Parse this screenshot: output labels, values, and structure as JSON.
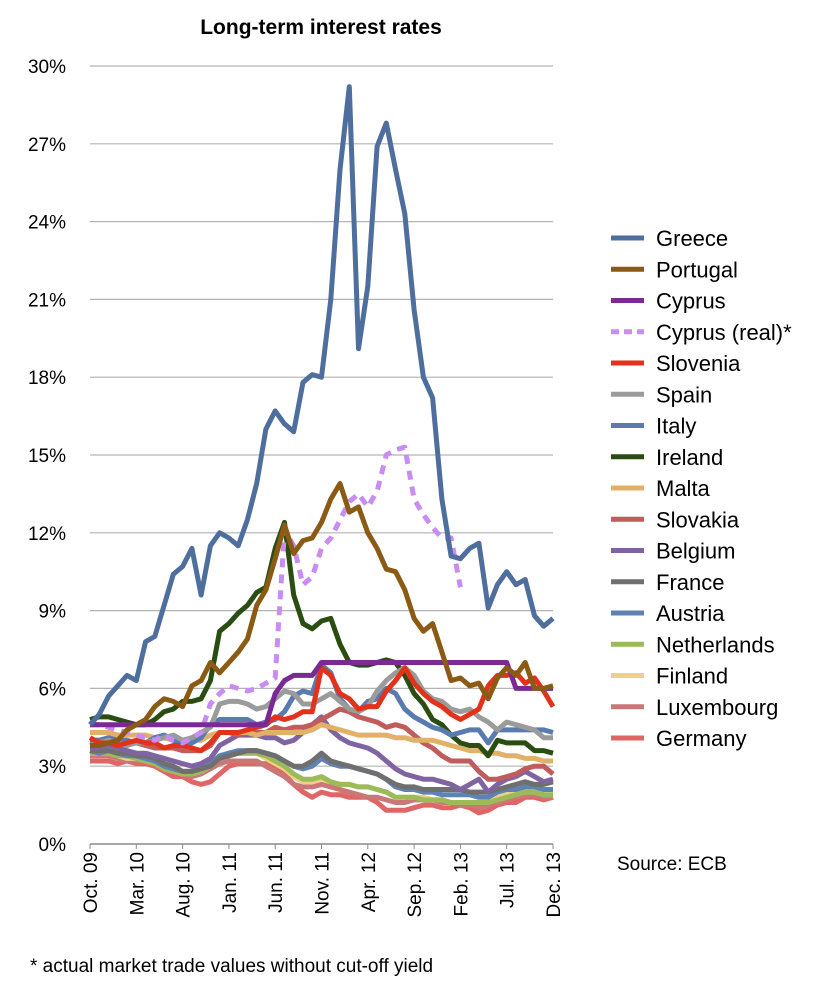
{
  "chart_data": {
    "type": "line",
    "title": "Long-term interest rates",
    "source": "Source: ECB",
    "footnote": "* actual market trade values without cut-off yield",
    "xlabel": "",
    "ylabel": "",
    "ylim": [
      0,
      30
    ],
    "yticks": [
      0,
      3,
      6,
      9,
      12,
      15,
      18,
      21,
      24,
      27,
      30
    ],
    "ytick_labels": [
      "0%",
      "3%",
      "6%",
      "9%",
      "12%",
      "15%",
      "18%",
      "21%",
      "24%",
      "27%",
      "30%"
    ],
    "x_tick_labels": [
      "Oct. 09",
      "Mar. 10",
      "Aug. 10",
      "Jan. 11",
      "Jun. 11",
      "Nov. 11",
      "Apr. 12",
      "Sep. 12",
      "Feb. 13",
      "Jul. 13",
      "Dec. 13"
    ],
    "x_tick_indices": [
      0,
      5,
      10,
      15,
      20,
      25,
      30,
      35,
      40,
      45,
      50
    ],
    "x_count": 51,
    "grid": true,
    "legend_position": "right",
    "series": [
      {
        "name": "Greece",
        "color": "#4e6e9e",
        "dashed": false,
        "values": [
          4.6,
          5.0,
          5.7,
          6.1,
          6.5,
          6.3,
          7.8,
          8.0,
          9.2,
          10.4,
          10.7,
          11.4,
          9.6,
          11.5,
          12.0,
          11.8,
          11.5,
          12.5,
          13.9,
          16.0,
          16.7,
          16.2,
          15.9,
          17.8,
          18.1,
          18.0,
          21.0,
          26.0,
          29.2,
          19.1,
          21.5,
          26.9,
          27.8,
          26.0,
          24.3,
          20.6,
          18.0,
          17.2,
          13.3,
          11.1,
          11.0,
          11.4,
          11.6,
          9.1,
          10.0,
          10.5,
          10.0,
          10.2,
          8.8,
          8.4,
          8.7
        ]
      },
      {
        "name": "Portugal",
        "color": "#8b5a14",
        "dashed": false,
        "values": [
          3.8,
          3.8,
          3.9,
          4.0,
          4.4,
          4.6,
          4.8,
          5.3,
          5.6,
          5.5,
          5.3,
          6.1,
          6.3,
          7.0,
          6.6,
          7.0,
          7.4,
          7.9,
          9.2,
          9.8,
          11.0,
          12.3,
          11.2,
          11.7,
          11.8,
          12.4,
          13.3,
          13.9,
          12.8,
          13.0,
          12.0,
          11.4,
          10.6,
          10.5,
          9.8,
          8.7,
          8.2,
          8.5,
          7.4,
          6.3,
          6.4,
          6.1,
          6.2,
          5.6,
          6.4,
          6.8,
          6.5,
          7.0,
          6.0,
          6.0,
          6.1
        ]
      },
      {
        "name": "Cyprus",
        "color": "#7b2a94",
        "dashed": false,
        "values": [
          4.6,
          4.6,
          4.6,
          4.6,
          4.6,
          4.6,
          4.6,
          4.6,
          4.6,
          4.6,
          4.6,
          4.6,
          4.6,
          4.6,
          4.6,
          4.6,
          4.6,
          4.6,
          4.6,
          4.6,
          5.8,
          6.3,
          6.5,
          6.5,
          6.5,
          7.0,
          7.0,
          7.0,
          7.0,
          7.0,
          7.0,
          7.0,
          7.0,
          7.0,
          7.0,
          7.0,
          7.0,
          7.0,
          7.0,
          7.0,
          7.0,
          7.0,
          7.0,
          7.0,
          7.0,
          7.0,
          6.0,
          6.0,
          6.0,
          6.0,
          6.0
        ]
      },
      {
        "name": "Cyprus (real)*",
        "color": "#c98cf2",
        "dashed": true,
        "values": [
          4.6,
          4.6,
          4.5,
          4.4,
          4.3,
          4.2,
          4.1,
          4.0,
          4.2,
          4.0,
          3.9,
          4.1,
          4.3,
          5.4,
          5.8,
          6.1,
          6.0,
          5.9,
          6.0,
          6.2,
          6.4,
          12.1,
          11.5,
          10.0,
          10.3,
          11.4,
          11.8,
          12.5,
          13.2,
          13.5,
          13.0,
          13.6,
          15.0,
          15.2,
          15.3,
          13.3,
          12.7,
          12.2,
          11.8,
          11.8,
          9.9,
          null,
          null,
          null,
          null,
          null,
          null,
          null,
          null,
          null,
          null
        ]
      },
      {
        "name": "Slovenia",
        "color": "#e2321b",
        "dashed": false,
        "values": [
          4.1,
          3.9,
          3.9,
          3.8,
          3.9,
          4.0,
          3.9,
          3.9,
          3.7,
          3.8,
          3.8,
          3.7,
          3.6,
          3.9,
          4.3,
          4.3,
          4.3,
          4.4,
          4.5,
          4.6,
          4.9,
          4.8,
          4.9,
          5.1,
          5.1,
          6.8,
          6.5,
          5.8,
          5.6,
          5.2,
          5.3,
          5.3,
          5.9,
          6.3,
          6.8,
          6.2,
          5.8,
          5.5,
          5.3,
          5.0,
          4.8,
          5.0,
          5.2,
          6.1,
          6.5,
          6.5,
          6.6,
          6.2,
          6.4,
          5.9,
          5.3
        ]
      },
      {
        "name": "Spain",
        "color": "#9b9b9b",
        "dashed": false,
        "values": [
          3.8,
          3.9,
          4.0,
          3.9,
          3.8,
          3.9,
          3.9,
          4.0,
          4.1,
          4.2,
          4.0,
          4.1,
          4.3,
          4.5,
          5.4,
          5.5,
          5.5,
          5.4,
          5.2,
          5.3,
          5.6,
          5.9,
          5.8,
          5.4,
          5.4,
          5.6,
          5.8,
          5.5,
          5.2,
          5.1,
          5.3,
          5.9,
          6.3,
          6.6,
          6.8,
          6.5,
          5.9,
          5.6,
          5.5,
          5.2,
          5.1,
          5.2,
          4.9,
          4.7,
          4.4,
          4.7,
          4.6,
          4.5,
          4.4,
          4.1,
          4.1
        ]
      },
      {
        "name": "Italy",
        "color": "#5a7bb0",
        "dashed": false,
        "values": [
          4.0,
          4.0,
          4.1,
          4.0,
          4.0,
          3.9,
          3.9,
          4.1,
          4.2,
          4.0,
          3.8,
          3.9,
          4.1,
          4.6,
          4.8,
          4.8,
          4.8,
          4.8,
          4.6,
          4.7,
          4.8,
          5.1,
          5.7,
          5.9,
          5.8,
          6.9,
          6.6,
          5.6,
          5.2,
          5.1,
          5.5,
          5.6,
          6.0,
          5.8,
          5.2,
          4.9,
          4.7,
          4.5,
          4.4,
          4.2,
          4.3,
          4.4,
          4.4,
          3.9,
          4.4,
          4.4,
          4.4,
          4.4,
          4.4,
          4.4,
          4.3
        ]
      },
      {
        "name": "Ireland",
        "color": "#2a4d12",
        "dashed": false,
        "values": [
          4.8,
          4.9,
          4.9,
          4.8,
          4.7,
          4.6,
          4.6,
          4.8,
          5.1,
          5.2,
          5.5,
          5.5,
          5.6,
          6.3,
          8.2,
          8.5,
          8.9,
          9.2,
          9.7,
          9.9,
          11.4,
          12.4,
          9.6,
          8.5,
          8.3,
          8.6,
          8.7,
          7.7,
          7.0,
          6.9,
          6.9,
          7.0,
          7.1,
          7.0,
          6.5,
          5.8,
          5.4,
          4.8,
          4.6,
          4.2,
          3.9,
          3.8,
          3.8,
          3.4,
          4.0,
          3.9,
          3.9,
          3.9,
          3.6,
          3.6,
          3.5
        ]
      },
      {
        "name": "Malta",
        "color": "#e1b167",
        "dashed": false,
        "values": [
          4.3,
          4.3,
          4.3,
          4.2,
          4.2,
          4.2,
          4.2,
          4.1,
          4.1,
          4.0,
          3.9,
          4.0,
          4.0,
          4.2,
          4.3,
          4.3,
          4.3,
          4.3,
          4.2,
          4.3,
          4.3,
          4.3,
          4.3,
          4.3,
          4.4,
          4.6,
          4.5,
          4.4,
          4.3,
          4.2,
          4.2,
          4.2,
          4.2,
          4.1,
          4.1,
          4.0,
          4.0,
          4.0,
          3.9,
          3.8,
          3.7,
          3.6,
          3.6,
          3.5,
          3.5,
          3.4,
          3.4,
          3.3,
          3.3,
          3.2,
          3.2
        ]
      },
      {
        "name": "Slovakia",
        "color": "#c05c5c",
        "dashed": false,
        "values": [
          4.0,
          4.0,
          4.0,
          3.9,
          3.9,
          3.9,
          3.8,
          3.7,
          3.7,
          3.7,
          3.6,
          3.6,
          3.6,
          3.8,
          4.3,
          4.3,
          4.2,
          4.3,
          4.3,
          4.3,
          4.5,
          4.4,
          4.5,
          4.5,
          4.6,
          4.8,
          5.0,
          5.2,
          5.1,
          4.9,
          4.8,
          4.7,
          4.5,
          4.6,
          4.5,
          4.2,
          3.9,
          3.7,
          3.4,
          3.2,
          3.2,
          3.2,
          2.8,
          2.5,
          2.5,
          2.6,
          2.7,
          2.9,
          3.0,
          3.0,
          2.7
        ]
      },
      {
        "name": "Belgium",
        "color": "#8064a2",
        "dashed": false,
        "values": [
          3.7,
          3.7,
          3.8,
          3.7,
          3.6,
          3.5,
          3.5,
          3.4,
          3.3,
          3.2,
          3.1,
          3.0,
          3.1,
          3.3,
          3.8,
          4.0,
          4.2,
          4.2,
          4.2,
          4.1,
          4.1,
          3.9,
          4.0,
          4.3,
          4.6,
          4.9,
          4.4,
          4.1,
          3.9,
          3.8,
          3.7,
          3.5,
          3.2,
          2.9,
          2.7,
          2.6,
          2.5,
          2.5,
          2.4,
          2.3,
          2.1,
          2.3,
          2.5,
          2.0,
          2.3,
          2.5,
          2.6,
          2.8,
          2.6,
          2.4,
          2.5
        ]
      },
      {
        "name": "France",
        "color": "#6f6f6f",
        "dashed": false,
        "values": [
          3.6,
          3.6,
          3.6,
          3.5,
          3.5,
          3.4,
          3.4,
          3.3,
          3.1,
          3.0,
          2.8,
          2.8,
          2.9,
          3.0,
          3.3,
          3.4,
          3.5,
          3.6,
          3.6,
          3.5,
          3.4,
          3.2,
          3.0,
          3.0,
          3.2,
          3.5,
          3.2,
          3.1,
          3.0,
          2.9,
          2.8,
          2.7,
          2.5,
          2.3,
          2.2,
          2.2,
          2.1,
          2.1,
          2.1,
          2.1,
          2.1,
          2.0,
          2.0,
          2.0,
          2.1,
          2.2,
          2.3,
          2.4,
          2.3,
          2.3,
          2.4
        ]
      },
      {
        "name": "Austria",
        "color": "#5f82b5",
        "dashed": false,
        "values": [
          3.6,
          3.5,
          3.6,
          3.5,
          3.4,
          3.4,
          3.3,
          3.2,
          3.0,
          2.9,
          2.8,
          2.8,
          2.9,
          3.1,
          3.4,
          3.5,
          3.6,
          3.6,
          3.6,
          3.5,
          3.4,
          3.2,
          3.0,
          2.9,
          3.0,
          3.3,
          3.1,
          3.0,
          3.0,
          2.9,
          2.8,
          2.7,
          2.5,
          2.2,
          2.1,
          2.1,
          2.0,
          2.0,
          1.9,
          1.9,
          1.9,
          1.9,
          1.8,
          1.8,
          2.0,
          2.1,
          2.1,
          2.2,
          2.2,
          2.1,
          2.1
        ]
      },
      {
        "name": "Netherlands",
        "color": "#9bbb59",
        "dashed": false,
        "values": [
          3.5,
          3.5,
          3.5,
          3.4,
          3.4,
          3.3,
          3.2,
          3.1,
          2.9,
          2.8,
          2.7,
          2.7,
          2.8,
          3.0,
          3.3,
          3.4,
          3.5,
          3.5,
          3.5,
          3.4,
          3.2,
          3.0,
          2.7,
          2.5,
          2.5,
          2.6,
          2.4,
          2.3,
          2.3,
          2.2,
          2.2,
          2.1,
          2.0,
          1.8,
          1.8,
          1.8,
          1.7,
          1.7,
          1.7,
          1.6,
          1.6,
          1.6,
          1.6,
          1.6,
          1.7,
          1.8,
          1.9,
          2.0,
          2.0,
          1.9,
          1.9
        ]
      },
      {
        "name": "Finland",
        "color": "#f1cf86",
        "dashed": false,
        "values": [
          3.5,
          3.5,
          3.5,
          3.4,
          3.3,
          3.3,
          3.2,
          3.1,
          2.9,
          2.8,
          2.7,
          2.7,
          2.8,
          3.0,
          3.3,
          3.4,
          3.5,
          3.5,
          3.5,
          3.3,
          3.1,
          2.9,
          2.6,
          2.4,
          2.4,
          2.5,
          2.4,
          2.3,
          2.3,
          2.2,
          2.2,
          2.1,
          2.0,
          1.8,
          1.8,
          1.8,
          1.8,
          1.7,
          1.7,
          1.6,
          1.6,
          1.6,
          1.6,
          1.6,
          1.8,
          1.9,
          2.0,
          2.0,
          2.0,
          1.9,
          1.9
        ]
      },
      {
        "name": "Luxembourg",
        "color": "#cc7777",
        "dashed": false,
        "values": [
          3.4,
          3.4,
          3.4,
          3.3,
          3.2,
          3.2,
          3.2,
          3.1,
          2.9,
          2.8,
          2.7,
          2.6,
          2.7,
          2.9,
          3.1,
          3.2,
          3.2,
          3.2,
          3.2,
          3.0,
          2.8,
          2.6,
          2.3,
          2.2,
          2.2,
          2.3,
          2.2,
          2.1,
          2.0,
          1.9,
          1.8,
          1.8,
          1.7,
          1.6,
          1.6,
          1.7,
          1.7,
          1.7,
          1.6,
          1.6,
          1.5,
          1.5,
          1.4,
          1.5,
          1.6,
          1.7,
          1.8,
          1.9,
          1.9,
          1.8,
          1.8
        ]
      },
      {
        "name": "Germany",
        "color": "#e06666",
        "dashed": false,
        "values": [
          3.2,
          3.2,
          3.2,
          3.1,
          3.2,
          3.1,
          3.1,
          3.0,
          2.8,
          2.6,
          2.6,
          2.4,
          2.3,
          2.4,
          2.7,
          3.0,
          3.1,
          3.1,
          3.1,
          3.1,
          2.9,
          2.7,
          2.3,
          2.0,
          1.8,
          2.0,
          1.9,
          1.9,
          1.8,
          1.8,
          1.8,
          1.6,
          1.3,
          1.3,
          1.3,
          1.4,
          1.5,
          1.5,
          1.4,
          1.4,
          1.5,
          1.4,
          1.2,
          1.3,
          1.5,
          1.6,
          1.6,
          1.8,
          1.8,
          1.7,
          1.8
        ]
      }
    ]
  }
}
